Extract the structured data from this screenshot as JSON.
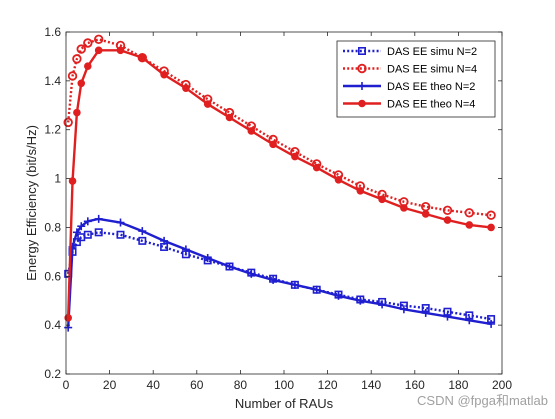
{
  "chart_data": {
    "type": "line",
    "xlabel": "Number of  RAUs",
    "ylabel": "Energy Efficiency (bit/s/Hz)",
    "xlim": [
      0,
      200
    ],
    "ylim": [
      0.2,
      1.6
    ],
    "xticks": [
      0,
      20,
      40,
      60,
      80,
      100,
      120,
      140,
      160,
      180,
      200
    ],
    "yticks": [
      0.2,
      0.4,
      0.6,
      0.8,
      1.0,
      1.2,
      1.4,
      1.6
    ],
    "ytick_labels": [
      "0.2",
      "0.4",
      "0.6",
      "0.8",
      "1",
      "1.2",
      "1.4",
      "1.6"
    ],
    "grid": false,
    "legend_position": "top-right",
    "series": [
      {
        "name": "DAS EE simu N=2",
        "color": "#1f1fd0",
        "line_style": "dotted",
        "marker": "square",
        "x": [
          1,
          3,
          5,
          7,
          10,
          15,
          25,
          35,
          45,
          55,
          65,
          75,
          85,
          95,
          105,
          115,
          125,
          135,
          145,
          155,
          165,
          175,
          185,
          195
        ],
        "y": [
          0.61,
          0.7,
          0.74,
          0.76,
          0.77,
          0.78,
          0.77,
          0.745,
          0.72,
          0.69,
          0.665,
          0.64,
          0.615,
          0.59,
          0.565,
          0.545,
          0.525,
          0.505,
          0.495,
          0.48,
          0.47,
          0.455,
          0.44,
          0.425
        ]
      },
      {
        "name": "DAS EE simu N=4",
        "color": "#e02020",
        "line_style": "dotted",
        "marker": "circle",
        "x": [
          1,
          3,
          5,
          7,
          10,
          15,
          25,
          35,
          45,
          55,
          65,
          75,
          85,
          95,
          105,
          115,
          125,
          135,
          145,
          155,
          165,
          175,
          185,
          195
        ],
        "y": [
          1.23,
          1.42,
          1.49,
          1.53,
          1.555,
          1.57,
          1.545,
          1.495,
          1.44,
          1.385,
          1.325,
          1.27,
          1.215,
          1.16,
          1.11,
          1.06,
          1.015,
          0.97,
          0.935,
          0.905,
          0.885,
          0.87,
          0.86,
          0.85
        ]
      },
      {
        "name": "DAS EE theo N=2",
        "color": "#1f1fd0",
        "line_style": "solid",
        "marker": "plus",
        "x": [
          1,
          3,
          5,
          7,
          10,
          15,
          25,
          35,
          45,
          55,
          65,
          75,
          85,
          95,
          105,
          115,
          125,
          135,
          145,
          155,
          165,
          175,
          185,
          195
        ],
        "y": [
          0.39,
          0.72,
          0.78,
          0.805,
          0.825,
          0.835,
          0.82,
          0.785,
          0.745,
          0.71,
          0.675,
          0.64,
          0.61,
          0.585,
          0.565,
          0.545,
          0.52,
          0.5,
          0.485,
          0.465,
          0.45,
          0.435,
          0.42,
          0.405
        ]
      },
      {
        "name": "DAS EE theo N=4",
        "color": "#e02020",
        "line_style": "solid",
        "marker": "filled-circle",
        "x": [
          1,
          3,
          5,
          7,
          10,
          15,
          25,
          35,
          45,
          55,
          65,
          75,
          85,
          95,
          105,
          115,
          125,
          135,
          145,
          155,
          165,
          175,
          185,
          195
        ],
        "y": [
          0.43,
          0.99,
          1.27,
          1.39,
          1.46,
          1.525,
          1.525,
          1.495,
          1.425,
          1.37,
          1.305,
          1.25,
          1.195,
          1.14,
          1.09,
          1.045,
          0.995,
          0.95,
          0.915,
          0.88,
          0.855,
          0.83,
          0.81,
          0.8
        ]
      }
    ]
  },
  "watermark": "CSDN @fpga和matlab"
}
